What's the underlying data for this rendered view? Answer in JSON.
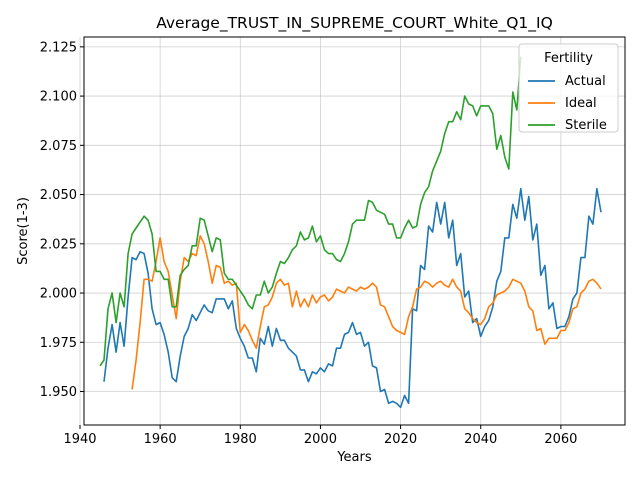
{
  "chart_data": {
    "type": "line",
    "title": "Average_TRUST_IN_SUPREME_COURT_White_Q1_IQ",
    "xlabel": "Years",
    "ylabel": "Score(1-3)",
    "xlim": [
      1941,
      2076
    ],
    "ylim": [
      1.933,
      2.13
    ],
    "xticks": [
      1940,
      1960,
      1980,
      2000,
      2020,
      2040,
      2060
    ],
    "yticks": [
      1.95,
      1.975,
      2.0,
      2.025,
      2.05,
      2.075,
      2.1,
      2.125
    ],
    "grid": true,
    "legend": {
      "title": "Fertility",
      "position": "top-right"
    },
    "series": [
      {
        "name": "Actual",
        "color": "#1f77b4",
        "x": [
          1946,
          1947,
          1948,
          1949,
          1950,
          1951,
          1952,
          1953,
          1954,
          1955,
          1956,
          1957,
          1958,
          1959,
          1960,
          1961,
          1962,
          1963,
          1964,
          1965,
          1966,
          1967,
          1968,
          1969,
          1970,
          1971,
          1972,
          1973,
          1974,
          1975,
          1976,
          1977,
          1978,
          1979,
          1980,
          1981,
          1982,
          1983,
          1984,
          1985,
          1986,
          1987,
          1988,
          1989,
          1990,
          1991,
          1992,
          1993,
          1994,
          1995,
          1996,
          1997,
          1998,
          1999,
          2000,
          2001,
          2002,
          2003,
          2004,
          2005,
          2006,
          2007,
          2008,
          2009,
          2010,
          2011,
          2012,
          2013,
          2014,
          2015,
          2016,
          2017,
          2018,
          2019,
          2020,
          2021,
          2022,
          2023,
          2024,
          2025,
          2026,
          2027,
          2028,
          2029,
          2030,
          2031,
          2032,
          2033,
          2034,
          2035,
          2036,
          2037,
          2038,
          2039,
          2040,
          2041,
          2042,
          2043,
          2044,
          2045,
          2046,
          2047,
          2048,
          2049,
          2050,
          2051,
          2052,
          2053,
          2054,
          2055,
          2056,
          2057,
          2058,
          2059,
          2060,
          2061,
          2062,
          2063,
          2064,
          2065,
          2066,
          2067,
          2068,
          2069,
          2070
        ],
        "y": [
          1.955,
          1.972,
          1.984,
          1.97,
          1.985,
          1.973,
          1.998,
          2.018,
          2.017,
          2.021,
          2.02,
          2.01,
          1.992,
          1.984,
          1.985,
          1.979,
          1.97,
          1.957,
          1.955,
          1.968,
          1.978,
          1.982,
          1.989,
          1.986,
          1.99,
          1.994,
          1.991,
          1.99,
          1.997,
          1.997,
          1.997,
          1.992,
          1.996,
          1.982,
          1.977,
          1.973,
          1.967,
          1.967,
          1.96,
          1.977,
          1.974,
          1.983,
          1.973,
          1.982,
          1.976,
          1.976,
          1.972,
          1.97,
          1.968,
          1.961,
          1.961,
          1.955,
          1.96,
          1.959,
          1.962,
          1.96,
          1.964,
          1.963,
          1.972,
          1.972,
          1.979,
          1.98,
          1.985,
          1.979,
          1.98,
          1.973,
          1.975,
          1.963,
          1.962,
          1.95,
          1.951,
          1.944,
          1.945,
          1.944,
          1.942,
          1.948,
          1.944,
          1.992,
          1.991,
          2.014,
          2.012,
          2.034,
          2.031,
          2.046,
          2.035,
          2.046,
          2.028,
          2.037,
          2.014,
          2.02,
          1.998,
          2.001,
          1.985,
          1.987,
          1.978,
          1.983,
          1.986,
          1.993,
          2.006,
          2.011,
          2.028,
          2.028,
          2.045,
          2.038,
          2.053,
          2.037,
          2.049,
          2.027,
          2.035,
          2.009,
          2.014,
          1.992,
          1.995,
          1.982,
          1.983,
          1.983,
          1.988,
          1.997,
          2.0,
          2.018,
          2.018,
          2.039,
          2.035,
          2.053,
          2.041
        ]
      },
      {
        "name": "Ideal",
        "color": "#ff7f0e",
        "x": [
          1953,
          1954,
          1955,
          1956,
          1957,
          1958,
          1959,
          1960,
          1961,
          1962,
          1963,
          1964,
          1965,
          1966,
          1967,
          1968,
          1969,
          1970,
          1971,
          1972,
          1973,
          1974,
          1975,
          1976,
          1977,
          1978,
          1979,
          1980,
          1981,
          1982,
          1983,
          1984,
          1985,
          1986,
          1987,
          1988,
          1989,
          1990,
          1991,
          1992,
          1993,
          1994,
          1995,
          1996,
          1997,
          1998,
          1999,
          2000,
          2001,
          2002,
          2003,
          2004,
          2005,
          2006,
          2007,
          2008,
          2009,
          2010,
          2011,
          2012,
          2013,
          2014,
          2015,
          2016,
          2017,
          2018,
          2019,
          2020,
          2021,
          2022,
          2023,
          2024,
          2025,
          2026,
          2027,
          2028,
          2029,
          2030,
          2031,
          2032,
          2033,
          2034,
          2035,
          2036,
          2037,
          2038,
          2039,
          2040,
          2041,
          2042,
          2043,
          2044,
          2045,
          2046,
          2047,
          2048,
          2049,
          2050,
          2051,
          2052,
          2053,
          2054,
          2055,
          2056,
          2057,
          2058,
          2059,
          2060,
          2061,
          2062,
          2063,
          2064,
          2065,
          2066,
          2067,
          2068,
          2069,
          2070
        ],
        "y": [
          1.951,
          1.966,
          1.985,
          2.007,
          2.007,
          2.006,
          2.016,
          2.028,
          2.016,
          2.011,
          1.999,
          1.987,
          2.006,
          2.018,
          2.016,
          2.02,
          2.019,
          2.029,
          2.025,
          2.016,
          2.005,
          2.014,
          2.013,
          2.005,
          2.006,
          2.004,
          2.005,
          1.98,
          1.984,
          1.981,
          1.976,
          1.972,
          1.983,
          1.993,
          1.994,
          1.998,
          2.005,
          2.007,
          2.004,
          2.005,
          1.993,
          2.001,
          1.993,
          1.997,
          1.993,
          1.999,
          1.995,
          1.998,
          1.999,
          1.996,
          1.998,
          2.002,
          2.001,
          2.0,
          2.003,
          2.002,
          2.001,
          2.003,
          2.002,
          2.003,
          2.005,
          2.003,
          1.994,
          1.993,
          1.988,
          1.983,
          1.981,
          1.98,
          1.979,
          1.988,
          1.993,
          2.002,
          2.003,
          2.006,
          2.005,
          2.003,
          2.005,
          2.006,
          2.004,
          2.003,
          2.007,
          2.003,
          2.001,
          1.992,
          1.99,
          1.987,
          1.985,
          1.984,
          1.987,
          1.993,
          1.995,
          1.999,
          2.0,
          2.001,
          2.003,
          2.007,
          2.006,
          2.005,
          2.001,
          1.993,
          1.991,
          1.981,
          1.982,
          1.974,
          1.977,
          1.977,
          1.977,
          1.981,
          1.981,
          1.985,
          1.992,
          1.993,
          2.0,
          2.002,
          2.006,
          2.007,
          2.005,
          2.002
        ]
      },
      {
        "name": "Sterile",
        "color": "#2ca02c",
        "x": [
          1945,
          1946,
          1947,
          1948,
          1949,
          1950,
          1951,
          1952,
          1953,
          1954,
          1955,
          1956,
          1957,
          1958,
          1959,
          1960,
          1961,
          1962,
          1963,
          1964,
          1965,
          1966,
          1967,
          1968,
          1969,
          1970,
          1971,
          1972,
          1973,
          1974,
          1975,
          1976,
          1977,
          1978,
          1979,
          1980,
          1981,
          1982,
          1983,
          1984,
          1985,
          1986,
          1987,
          1988,
          1989,
          1990,
          1991,
          1992,
          1993,
          1994,
          1995,
          1996,
          1997,
          1998,
          1999,
          2000,
          2001,
          2002,
          2003,
          2004,
          2005,
          2006,
          2007,
          2008,
          2009,
          2010,
          2011,
          2012,
          2013,
          2014,
          2015,
          2016,
          2017,
          2018,
          2019,
          2020,
          2021,
          2022,
          2023,
          2024,
          2025,
          2026,
          2027,
          2028,
          2029,
          2030,
          2031,
          2032,
          2033,
          2034,
          2035,
          2036,
          2037,
          2038,
          2039,
          2040,
          2041,
          2042,
          2043,
          2044,
          2045,
          2046,
          2047,
          2048,
          2049,
          2050
        ],
        "y": [
          1.963,
          1.966,
          1.992,
          2.0,
          1.985,
          2.0,
          1.993,
          2.02,
          2.03,
          2.033,
          2.036,
          2.039,
          2.037,
          2.03,
          2.011,
          2.011,
          2.007,
          2.007,
          1.993,
          1.993,
          2.009,
          2.012,
          2.014,
          2.024,
          2.024,
          2.038,
          2.037,
          2.029,
          2.021,
          2.028,
          2.027,
          2.01,
          2.007,
          2.007,
          2.004,
          2.001,
          1.998,
          1.994,
          1.992,
          1.999,
          1.999,
          2.006,
          2.0,
          2.003,
          2.01,
          2.016,
          2.015,
          2.018,
          2.022,
          2.024,
          2.031,
          2.027,
          2.028,
          2.034,
          2.026,
          2.029,
          2.022,
          2.02,
          2.02,
          2.017,
          2.016,
          2.02,
          2.026,
          2.035,
          2.037,
          2.037,
          2.037,
          2.047,
          2.046,
          2.042,
          2.041,
          2.04,
          2.035,
          2.035,
          2.028,
          2.028,
          2.033,
          2.037,
          2.033,
          2.034,
          2.045,
          2.051,
          2.054,
          2.062,
          2.067,
          2.072,
          2.081,
          2.087,
          2.087,
          2.092,
          2.088,
          2.1,
          2.096,
          2.095,
          2.09,
          2.095,
          2.095,
          2.095,
          2.091,
          2.073,
          2.08,
          2.069,
          2.063,
          2.102,
          2.093,
          2.12
        ]
      }
    ]
  }
}
